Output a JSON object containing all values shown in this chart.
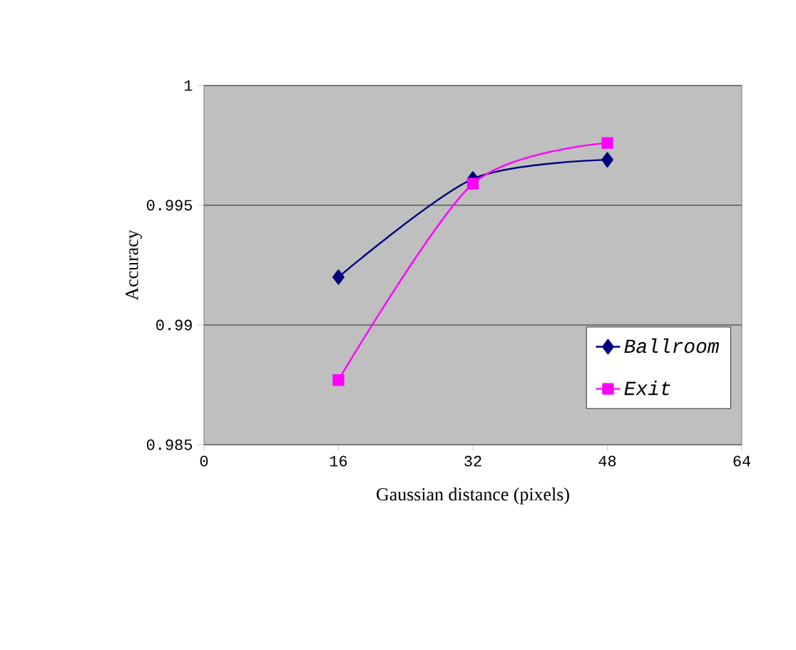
{
  "chart_data": {
    "type": "line",
    "xlabel": "Gaussian distance (pixels)",
    "ylabel": "Accuracy",
    "x": [
      16,
      32,
      48
    ],
    "series": [
      {
        "name": "Ballroom",
        "color": "#000080",
        "marker": "diamond",
        "values": [
          0.992,
          0.9961,
          0.9969
        ]
      },
      {
        "name": "Exit",
        "color": "#ff00ff",
        "marker": "square",
        "values": [
          0.9877,
          0.9959,
          0.9976
        ]
      }
    ],
    "xlim": [
      0,
      64
    ],
    "xticks": [
      0,
      16,
      32,
      48,
      64
    ],
    "ylim": [
      0.985,
      1
    ],
    "yticks": [
      0.985,
      0.99,
      0.995,
      1
    ],
    "grid": "y",
    "legend": "bottom right",
    "line_style": "solid"
  }
}
